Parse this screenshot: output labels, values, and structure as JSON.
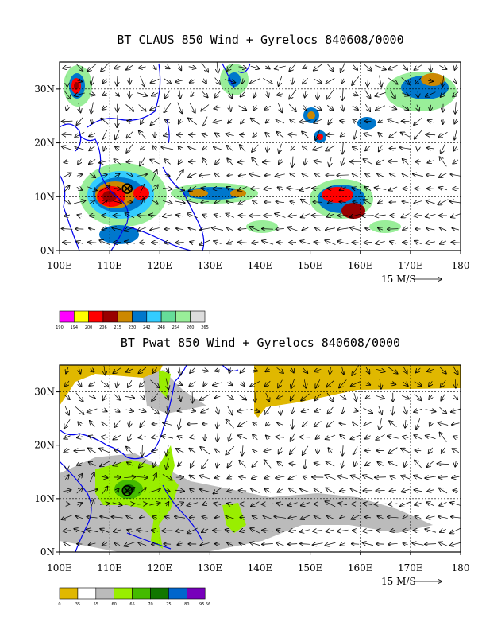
{
  "panels": [
    {
      "id": "claus",
      "title": "BT CLAUS 850 Wind + Gyrelocs 840608/0000",
      "x_ticks": [
        "100E",
        "110E",
        "120E",
        "130E",
        "140E",
        "150E",
        "160E",
        "170E",
        "180"
      ],
      "y_ticks": [
        "0N",
        "10N",
        "20N",
        "30N"
      ],
      "ref_vector_label": "15 M/S",
      "colorbar": {
        "labels": [
          "190",
          "194",
          "200",
          "206",
          "215",
          "230",
          "242",
          "248",
          "254",
          "260",
          "265"
        ],
        "colors": [
          "#ff00ff",
          "#ffff00",
          "#ff0000",
          "#990000",
          "#cc8800",
          "#0077cc",
          "#33ccff",
          "#66dd99",
          "#99ee99",
          "#dddddd"
        ]
      }
    },
    {
      "id": "pwat",
      "title": "BT Pwat 850 Wind + Gyrelocs 840608/0000",
      "x_ticks": [
        "100E",
        "110E",
        "120E",
        "130E",
        "140E",
        "150E",
        "160E",
        "170E",
        "180"
      ],
      "y_ticks": [
        "0N",
        "10N",
        "20N",
        "30N"
      ],
      "ref_vector_label": "15 M/S",
      "colorbar": {
        "labels": [
          "0",
          "35",
          "55",
          "60",
          "65",
          "70",
          "75",
          "80",
          "95.56"
        ],
        "colors": [
          "#e0b800",
          "#ffffff",
          "#bbbbbb",
          "#99ee00",
          "#44bb00",
          "#117700",
          "#0066cc",
          "#7700bb"
        ]
      }
    }
  ],
  "gyre_location": {
    "lon": 113.5,
    "lat": 11.5
  },
  "map_extent": {
    "lon": [
      100,
      180
    ],
    "lat": [
      0,
      35
    ]
  }
}
